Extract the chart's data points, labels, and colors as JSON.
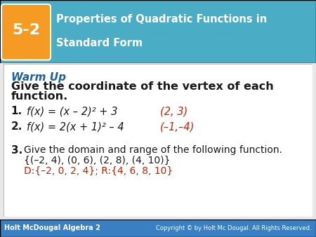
{
  "header_bg_color": "#4BACC6",
  "header_grad_color": "#2E86AB",
  "badge_bg_color": "#F59A23",
  "badge_text": "5-2",
  "title_line1": "Properties of Quadratic Functions in",
  "title_line2": "Standard Form",
  "warm_up_color": "#1F5FA6",
  "warm_up_text": "Warm Up",
  "instruction1": "Give the coordinate of the vertex of each",
  "instruction2": "function.",
  "item1_num": "1.",
  "item1_black": "f(x) = (x – 2)² + 3",
  "item1_red": "(2, 3)",
  "item2_num": "2.",
  "item2_black": "f(x) = 2(x + 1)² – 4",
  "item2_red": "(–1,–4)",
  "item3_num": "3.",
  "item3_intro": "Give the domain and range of the following function.",
  "item3_set": "{(–2, 4), (0, 6), (2, 8), (4, 10)}",
  "item3_answer": "D:{–2, 0, 2, 4}; R:{4, 6, 8, 10}",
  "footer_bg_color": "#3A7FC1",
  "footer_left": "Holt McDougal Algebra 2",
  "footer_right": "Copyright © by Holt Mc Dougal. All Rights Reserved.",
  "black_color": "#1A1A1A",
  "red_color": "#CC2200",
  "white_color": "#FFFFFF",
  "body_bg": "#FFFFFF",
  "outer_bg": "#E8E8E8"
}
